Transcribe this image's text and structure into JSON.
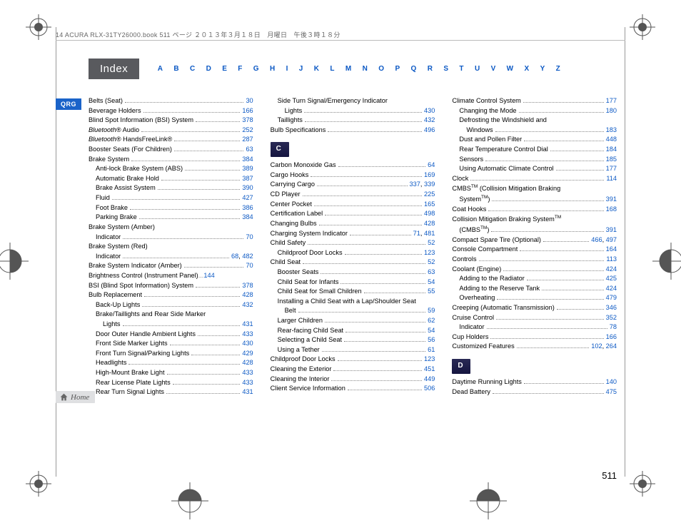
{
  "colors": {
    "link": "#0b58c4",
    "ink": "#000000",
    "bg": "#ffffff",
    "index_bg": "#595a5e",
    "section_bg": "#1a1a4a",
    "qrg_bg": "#1a63c9",
    "dots": "#888888",
    "rule": "#bbbbbb"
  },
  "typography": {
    "body_pt": 9.2,
    "line_height": 1.48,
    "title_pt": 15,
    "alpha_pt": 10
  },
  "header": {
    "text": "14 ACURA RLX-31TY26000.book  511 ページ  ２０１３年３月１８日　月曜日　午後３時１８分"
  },
  "index_title": "Index",
  "alpha": [
    "A",
    "B",
    "C",
    "D",
    "E",
    "F",
    "G",
    "H",
    "I",
    "J",
    "K",
    "L",
    "M",
    "N",
    "O",
    "P",
    "Q",
    "R",
    "S",
    "T",
    "U",
    "V",
    "W",
    "X",
    "Y",
    "Z"
  ],
  "qrg": "QRG",
  "home": "Home",
  "page_number": "511",
  "col1": [
    {
      "label": "Belts (Seat)",
      "pages": [
        "30"
      ]
    },
    {
      "label": "Beverage Holders",
      "pages": [
        "166"
      ]
    },
    {
      "label": "Blind Spot Information (BSI) System",
      "pages": [
        "378"
      ]
    },
    {
      "label_html": "<span class='ital'>Bluetooth</span>® Audio",
      "pages": [
        "252"
      ]
    },
    {
      "label_html": "<span class='ital'>Bluetooth</span>® HandsFreeLink®",
      "pages": [
        "287"
      ]
    },
    {
      "label": "Booster Seats (For Children)",
      "pages": [
        "63"
      ]
    },
    {
      "label": "Brake System",
      "pages": [
        "384"
      ]
    },
    {
      "label": "Anti-lock Brake System (ABS)",
      "pages": [
        "389"
      ],
      "indent": 1
    },
    {
      "label": "Automatic Brake Hold",
      "pages": [
        "387"
      ],
      "indent": 1
    },
    {
      "label": "Brake Assist System",
      "pages": [
        "390"
      ],
      "indent": 1
    },
    {
      "label": "Fluid",
      "pages": [
        "427"
      ],
      "indent": 1
    },
    {
      "label": "Foot Brake",
      "pages": [
        "386"
      ],
      "indent": 1
    },
    {
      "label": "Parking Brake",
      "pages": [
        "384"
      ],
      "indent": 1
    },
    {
      "label": "Brake System (Amber)",
      "nopage": true
    },
    {
      "label": "Indicator",
      "pages": [
        "70"
      ],
      "indent": 1
    },
    {
      "label": "Brake System (Red)",
      "nopage": true
    },
    {
      "label": "Indicator",
      "pages": [
        "68",
        "482"
      ],
      "indent": 1
    },
    {
      "label": "Brake System Indicator (Amber)",
      "pages": [
        "70"
      ]
    },
    {
      "label": "Brightness Control (Instrument Panel)",
      "pages": [
        "144"
      ],
      "nodots": true
    },
    {
      "label": "BSI (Blind Spot Information) System",
      "pages": [
        "378"
      ]
    },
    {
      "label": "Bulb Replacement",
      "pages": [
        "428"
      ]
    },
    {
      "label": "Back-Up Lights",
      "pages": [
        "432"
      ],
      "indent": 1
    },
    {
      "label": "Brake/Taillights and Rear Side Marker",
      "indent": 1,
      "nopage": true
    },
    {
      "label": "Lights",
      "pages": [
        "431"
      ],
      "indent": 2
    },
    {
      "label": "Door Outer Handle Ambient Lights",
      "pages": [
        "433"
      ],
      "indent": 1
    },
    {
      "label": "Front Side Marker Lights",
      "pages": [
        "430"
      ],
      "indent": 1
    },
    {
      "label": "Front Turn Signal/Parking Lights",
      "pages": [
        "429"
      ],
      "indent": 1
    },
    {
      "label": "Headlights",
      "pages": [
        "428"
      ],
      "indent": 1
    },
    {
      "label": "High-Mount Brake Light",
      "pages": [
        "433"
      ],
      "indent": 1
    },
    {
      "label": "Rear License Plate Lights",
      "pages": [
        "433"
      ],
      "indent": 1
    },
    {
      "label": "Rear Turn Signal Lights",
      "pages": [
        "431"
      ],
      "indent": 1
    }
  ],
  "col2_pre": [
    {
      "label": "Side Turn Signal/Emergency Indicator",
      "indent": 1,
      "nopage": true
    },
    {
      "label": "Lights",
      "pages": [
        "430"
      ],
      "indent": 2
    },
    {
      "label": "Taillights",
      "pages": [
        "432"
      ],
      "indent": 1
    },
    {
      "label": "Bulb Specifications",
      "pages": [
        "496"
      ]
    }
  ],
  "section_C": "C",
  "col2_c": [
    {
      "label": "Carbon Monoxide Gas",
      "pages": [
        "64"
      ]
    },
    {
      "label": "Cargo Hooks",
      "pages": [
        "169"
      ]
    },
    {
      "label": "Carrying Cargo",
      "pages": [
        "337",
        "339"
      ]
    },
    {
      "label": "CD Player",
      "pages": [
        "225"
      ]
    },
    {
      "label": "Center Pocket",
      "pages": [
        "165"
      ]
    },
    {
      "label": "Certification Label",
      "pages": [
        "498"
      ]
    },
    {
      "label": "Changing Bulbs",
      "pages": [
        "428"
      ]
    },
    {
      "label": "Charging System Indicator",
      "pages": [
        "71",
        "481"
      ]
    },
    {
      "label": "Child Safety",
      "pages": [
        "52"
      ]
    },
    {
      "label": "Childproof Door Locks",
      "pages": [
        "123"
      ],
      "indent": 1
    },
    {
      "label": "Child Seat",
      "pages": [
        "52"
      ]
    },
    {
      "label": "Booster Seats",
      "pages": [
        "63"
      ],
      "indent": 1
    },
    {
      "label": "Child Seat for Infants",
      "pages": [
        "54"
      ],
      "indent": 1
    },
    {
      "label": "Child Seat for Small Children",
      "pages": [
        "55"
      ],
      "indent": 1
    },
    {
      "label": "Installing a Child Seat with a Lap/Shoulder Seat",
      "indent": 1,
      "nopage": true
    },
    {
      "label": "Belt",
      "pages": [
        "59"
      ],
      "indent": 2
    },
    {
      "label": "Larger Children",
      "pages": [
        "62"
      ],
      "indent": 1
    },
    {
      "label": "Rear-facing Child Seat",
      "pages": [
        "54"
      ],
      "indent": 1
    },
    {
      "label": "Selecting a Child Seat",
      "pages": [
        "56"
      ],
      "indent": 1
    },
    {
      "label": "Using a Tether",
      "pages": [
        "61"
      ],
      "indent": 1
    },
    {
      "label": "Childproof Door Locks",
      "pages": [
        "123"
      ]
    },
    {
      "label": "Cleaning the Exterior",
      "pages": [
        "451"
      ]
    },
    {
      "label": "Cleaning the Interior",
      "pages": [
        "449"
      ]
    },
    {
      "label": "Client Service Information",
      "pages": [
        "506"
      ]
    }
  ],
  "col3_pre": [
    {
      "label": "Climate Control System",
      "pages": [
        "177"
      ]
    },
    {
      "label": "Changing the Mode",
      "pages": [
        "180"
      ],
      "indent": 1
    },
    {
      "label": "Defrosting the Windshield and",
      "indent": 1,
      "nopage": true
    },
    {
      "label": "Windows",
      "pages": [
        "183"
      ],
      "indent": 2
    },
    {
      "label": "Dust and Pollen Filter",
      "pages": [
        "448"
      ],
      "indent": 1
    },
    {
      "label": "Rear Temperature Control Dial",
      "pages": [
        "184"
      ],
      "indent": 1
    },
    {
      "label": "Sensors",
      "pages": [
        "185"
      ],
      "indent": 1
    },
    {
      "label": "Using Automatic Climate Control",
      "pages": [
        "177"
      ],
      "indent": 1
    },
    {
      "label": "Clock",
      "pages": [
        "114"
      ]
    },
    {
      "label_html": "CMBS<sup>TM</sup> (Collision Mitigation Braking",
      "nopage": true
    },
    {
      "label_html": "System<sup>TM</sup>)",
      "pages": [
        "391"
      ],
      "indent": 1
    },
    {
      "label": "Coat Hooks",
      "pages": [
        "168"
      ]
    },
    {
      "label_html": "Collision Mitigation Braking System<sup>TM</sup>",
      "nopage": true
    },
    {
      "label_html": "(CMBS<sup>TM</sup>)",
      "pages": [
        "391"
      ],
      "indent": 1
    },
    {
      "label": "Compact Spare Tire (Optional)",
      "pages": [
        "466",
        "497"
      ]
    },
    {
      "label": "Console Compartment",
      "pages": [
        "164"
      ]
    },
    {
      "label": "Controls",
      "pages": [
        "113"
      ]
    },
    {
      "label": "Coolant (Engine)",
      "pages": [
        "424"
      ]
    },
    {
      "label": "Adding to the Radiator",
      "pages": [
        "425"
      ],
      "indent": 1
    },
    {
      "label": "Adding to the Reserve Tank",
      "pages": [
        "424"
      ],
      "indent": 1
    },
    {
      "label": "Overheating",
      "pages": [
        "479"
      ],
      "indent": 1
    },
    {
      "label": "Creeping (Automatic Transmission)",
      "pages": [
        "346"
      ]
    },
    {
      "label": "Cruise Control",
      "pages": [
        "352"
      ]
    },
    {
      "label": "Indicator",
      "pages": [
        "78"
      ],
      "indent": 1
    },
    {
      "label": "Cup Holders",
      "pages": [
        "166"
      ]
    },
    {
      "label": "Customized Features",
      "pages": [
        "102",
        "264"
      ]
    }
  ],
  "section_D": "D",
  "col3_d": [
    {
      "label": "Daytime Running Lights",
      "pages": [
        "140"
      ]
    },
    {
      "label": "Dead Battery",
      "pages": [
        "475"
      ]
    }
  ]
}
